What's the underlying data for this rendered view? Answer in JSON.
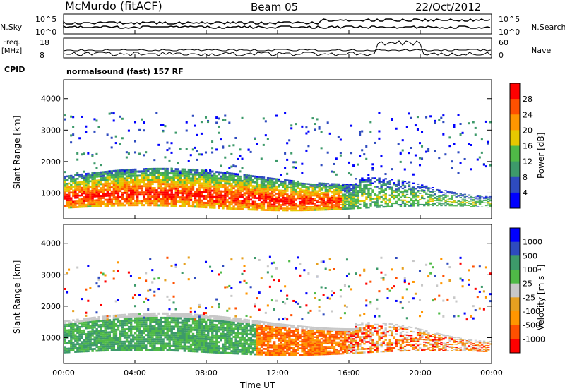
{
  "header": {
    "station": "McMurdo (fitACF)",
    "beam": "Beam 05",
    "date": "22/Oct/2012"
  },
  "noise_panel": {
    "left_label": "N.Sky",
    "right_label": "N.Search",
    "left_ticks": [
      "10^5",
      "10^0"
    ],
    "right_ticks": [
      "10^5",
      "10^0"
    ]
  },
  "freq_panel": {
    "left_label_line1": "Freq.",
    "left_label_line2": "[MHz]",
    "right_label": "Nave",
    "left_ticks": [
      "18",
      "8"
    ],
    "right_ticks": [
      "60",
      "0"
    ]
  },
  "cpid": {
    "label": "CPID",
    "value": "normalsound (fast) 157 RF"
  },
  "colors": {
    "power_scale": [
      "#0000ff",
      "#2e4bbf",
      "#3d9a6a",
      "#4fba47",
      "#e6c800",
      "#ff9600",
      "#ff5000",
      "#ff0000"
    ],
    "velocity_scale": [
      "#ff0000",
      "#ff5000",
      "#ff9600",
      "#e6a020",
      "#c8c8c8",
      "#4fba47",
      "#3d9a6a",
      "#2e4bbf",
      "#0000ff"
    ]
  },
  "chart_data": [
    {
      "type": "heatmap",
      "name": "power",
      "ylabel": "Slant Range [km]",
      "ylim": [
        180,
        4600
      ],
      "y_ticks": [
        1000,
        2000,
        3000,
        4000
      ],
      "x_ticks": [
        "00:00",
        "04:00",
        "08:00",
        "12:00",
        "16:00",
        "20:00",
        "00:00"
      ],
      "colorbar_label": "Power [dB]",
      "colorbar_ticks": [
        "28",
        "24",
        "20",
        "16",
        "12",
        "8",
        "4"
      ]
    },
    {
      "type": "heatmap",
      "name": "velocity",
      "ylabel": "Slant Range [km]",
      "ylim": [
        180,
        4600
      ],
      "y_ticks": [
        1000,
        2000,
        3000,
        4000
      ],
      "x_ticks": [
        "00:00",
        "04:00",
        "08:00",
        "12:00",
        "16:00",
        "20:00",
        "00:00"
      ],
      "xlabel": "Time UT",
      "colorbar_label": "Velocity [m s⁻¹]",
      "colorbar_ticks": [
        "1000",
        "500",
        "100",
        "25",
        "-25",
        "-100",
        "-500",
        "-1000"
      ]
    }
  ]
}
